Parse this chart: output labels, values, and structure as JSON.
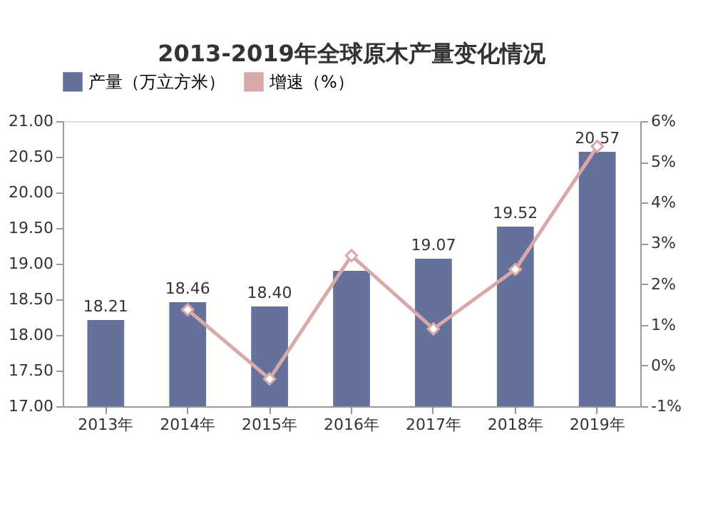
{
  "chart_data": {
    "type": "bar",
    "title": "2013-2019年全球原木产量变化情况",
    "categories": [
      "2013年",
      "2014年",
      "2015年",
      "2016年",
      "2017年",
      "2018年",
      "2019年"
    ],
    "series": [
      {
        "name": "产量（万立方米）",
        "type": "bar",
        "color": "#65719b",
        "values": [
          18.21,
          18.46,
          18.4,
          18.9,
          19.07,
          19.52,
          20.57
        ],
        "value_labels": [
          "18.21",
          "18.46",
          "18.40",
          null,
          "19.07",
          "19.52",
          "20.57"
        ]
      },
      {
        "name": "增速（%）",
        "type": "line",
        "axis": "y2",
        "color": "#d9a9a9",
        "marker": "diamond",
        "values": [
          null,
          1.37,
          -0.33,
          2.7,
          0.9,
          2.36,
          5.38
        ]
      }
    ],
    "ylim": [
      17,
      21
    ],
    "yticks": [
      {
        "value": 17,
        "label": "17.00"
      },
      {
        "value": 17.5,
        "label": "17.50"
      },
      {
        "value": 18,
        "label": "18.00"
      },
      {
        "value": 18.5,
        "label": "18.50"
      },
      {
        "value": 19,
        "label": "19.00"
      },
      {
        "value": 19.5,
        "label": "19.50"
      },
      {
        "value": 20,
        "label": "20.00"
      },
      {
        "value": 20.5,
        "label": "20.50"
      },
      {
        "value": 21,
        "label": "21.00"
      }
    ],
    "y2lim": [
      -1,
      6
    ],
    "y2ticks": [
      {
        "value": -1,
        "label": "-1%"
      },
      {
        "value": 0,
        "label": "0%"
      },
      {
        "value": 1,
        "label": "1%"
      },
      {
        "value": 2,
        "label": "2%"
      },
      {
        "value": 3,
        "label": "3%"
      },
      {
        "value": 4,
        "label": "4%"
      },
      {
        "value": 5,
        "label": "5%"
      },
      {
        "value": 6,
        "label": "6%"
      }
    ],
    "grid": false,
    "legend": "top"
  }
}
